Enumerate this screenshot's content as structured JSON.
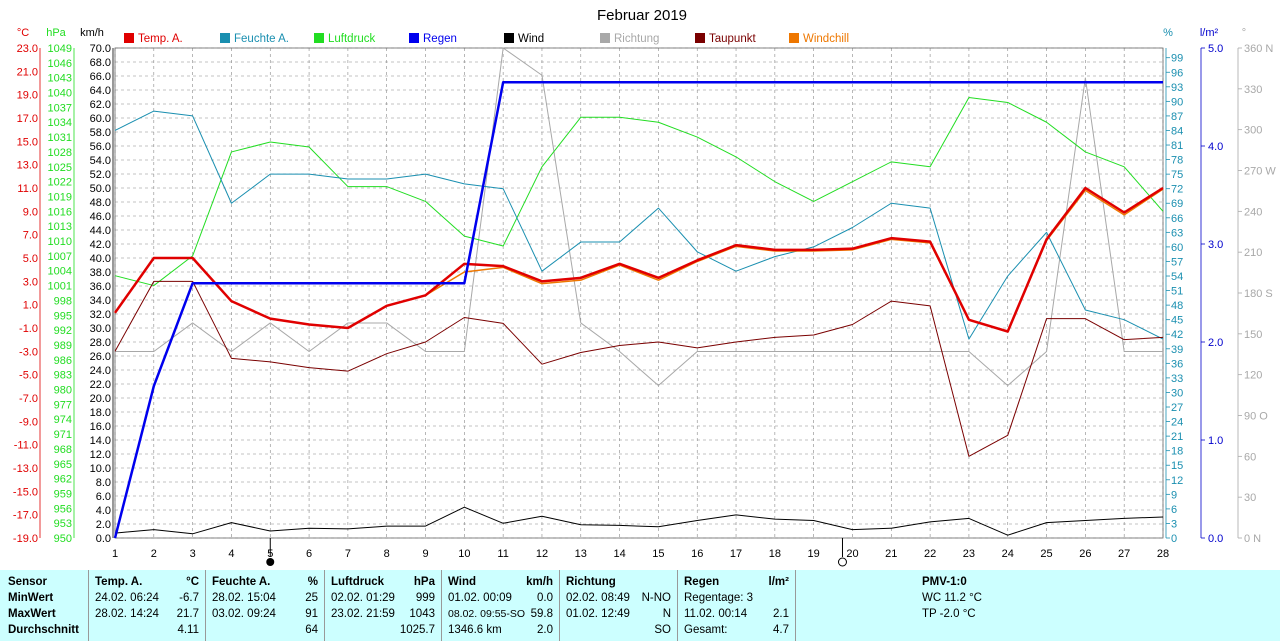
{
  "chart_data": {
    "type": "line",
    "title": "Februar 2019",
    "x": [
      1,
      2,
      3,
      4,
      5,
      6,
      7,
      8,
      9,
      10,
      11,
      12,
      13,
      14,
      15,
      16,
      17,
      18,
      19,
      20,
      21,
      22,
      23,
      24,
      25,
      26,
      27,
      28
    ],
    "legend": [
      {
        "name": "Temp. A.",
        "color": "#e00000"
      },
      {
        "name": "Feuchte A.",
        "color": "#1a8fb0"
      },
      {
        "name": "Luftdruck",
        "color": "#22dd22"
      },
      {
        "name": "Regen",
        "color": "#0000ee"
      },
      {
        "name": "Wind",
        "color": "#000000"
      },
      {
        "name": "Richtung",
        "color": "#a8a8a8"
      },
      {
        "name": "Taupunkt",
        "color": "#7a0000"
      },
      {
        "name": "Windchill",
        "color": "#ee7700"
      }
    ],
    "axes": {
      "temp": {
        "unit": "°C",
        "min": -19,
        "max": 23,
        "ticks": [
          "23.0",
          "21.0",
          "19.0",
          "17.0",
          "15.0",
          "13.0",
          "11.0",
          "9.0",
          "7.0",
          "5.0",
          "3.0",
          "1.0",
          "-1.0",
          "-3.0",
          "-5.0",
          "-7.0",
          "-9.0",
          "-11.0",
          "-13.0",
          "-15.0",
          "-17.0",
          "-19.0"
        ]
      },
      "pressure": {
        "unit": "hPa",
        "min": 950,
        "max": 1049,
        "ticks": [
          "1049",
          "1046",
          "1043",
          "1040",
          "1037",
          "1034",
          "1031",
          "1028",
          "1025",
          "1022",
          "1019",
          "1016",
          "1013",
          "1010",
          "1007",
          "1004",
          "1001",
          "998",
          "995",
          "992",
          "989",
          "986",
          "983",
          "980",
          "977",
          "974",
          "971",
          "968",
          "965",
          "962",
          "959",
          "956",
          "953",
          "950"
        ]
      },
      "wind": {
        "unit": "km/h",
        "min": 0,
        "max": 70,
        "ticks": [
          "70.0",
          "68.0",
          "66.0",
          "64.0",
          "62.0",
          "60.0",
          "58.0",
          "56.0",
          "54.0",
          "52.0",
          "50.0",
          "48.0",
          "46.0",
          "44.0",
          "42.0",
          "40.0",
          "38.0",
          "36.0",
          "34.0",
          "32.0",
          "30.0",
          "28.0",
          "26.0",
          "24.0",
          "22.0",
          "20.0",
          "18.0",
          "16.0",
          "14.0",
          "12.0",
          "10.0",
          "8.0",
          "6.0",
          "4.0",
          "2.0",
          "0.0"
        ]
      },
      "humidity": {
        "unit": "%",
        "min": 0,
        "max": 101,
        "ticks": [
          "99",
          "96",
          "93",
          "90",
          "87",
          "84",
          "81",
          "78",
          "75",
          "72",
          "69",
          "66",
          "63",
          "60",
          "57",
          "54",
          "51",
          "48",
          "45",
          "42",
          "39",
          "36",
          "33",
          "30",
          "27",
          "24",
          "21",
          "18",
          "15",
          "12",
          "9",
          "6",
          "3",
          "0"
        ]
      },
      "rain": {
        "unit": "l/m²",
        "min": 0,
        "max": 5,
        "ticks": [
          "5.0",
          "4.0",
          "3.0",
          "2.0",
          "1.0",
          "0.0"
        ]
      },
      "direction": {
        "unit": "°",
        "min": 0,
        "max": 360,
        "ticks": [
          "360 N",
          "330",
          "300",
          "270 W",
          "240",
          "210",
          "180 S",
          "150",
          "120",
          "90 O",
          "60",
          "30",
          "0 N"
        ]
      }
    },
    "series": [
      {
        "name": "Temp. A.",
        "axis": "temp",
        "color": "#e00000",
        "width": 2.5,
        "values": [
          0.3,
          5.0,
          5.0,
          1.3,
          -0.2,
          -0.7,
          -1.0,
          0.9,
          1.8,
          4.5,
          4.3,
          3.0,
          3.3,
          4.5,
          3.3,
          4.8,
          6.1,
          5.7,
          5.7,
          5.8,
          6.7,
          6.4,
          -0.3,
          -1.3,
          6.6,
          11.0,
          8.9,
          11.0
        ]
      },
      {
        "name": "Windchill",
        "axis": "temp",
        "color": "#ee7700",
        "width": 1.5,
        "values": [
          0.3,
          5.0,
          5.0,
          1.3,
          -0.2,
          -0.7,
          -1.0,
          0.9,
          1.8,
          3.8,
          4.2,
          2.8,
          3.1,
          4.4,
          3.1,
          4.7,
          6.0,
          5.6,
          5.6,
          5.7,
          6.6,
          6.3,
          -0.3,
          -1.3,
          6.5,
          10.8,
          8.7,
          10.9
        ]
      },
      {
        "name": "Taupunkt",
        "axis": "temp",
        "color": "#7a0000",
        "width": 1,
        "values": [
          -3.0,
          3.0,
          3.0,
          -3.6,
          -3.9,
          -4.4,
          -4.7,
          -3.2,
          -2.2,
          -0.1,
          -0.6,
          -4.1,
          -3.1,
          -2.5,
          -2.2,
          -2.7,
          -2.2,
          -1.8,
          -1.6,
          -0.7,
          1.3,
          0.9,
          -12.0,
          -10.2,
          -0.2,
          -0.2,
          -2.0,
          -1.8
        ]
      },
      {
        "name": "Feuchte A.",
        "axis": "humidity",
        "color": "#1a8fb0",
        "width": 1,
        "values": [
          84,
          88,
          87,
          69,
          75,
          75,
          74,
          74,
          75,
          73,
          72,
          55,
          61,
          61,
          68,
          59,
          55,
          58,
          60,
          64,
          69,
          68,
          41,
          54,
          63,
          47,
          45,
          41
        ]
      },
      {
        "name": "Luftdruck",
        "axis": "pressure",
        "color": "#22dd22",
        "width": 1,
        "values": [
          1003,
          1001,
          1007,
          1028,
          1030,
          1029,
          1021,
          1021,
          1018,
          1011,
          1009,
          1025,
          1035,
          1035,
          1034,
          1031,
          1027,
          1022,
          1018,
          1022,
          1026,
          1025,
          1039,
          1038,
          1034,
          1028,
          1025,
          1016
        ]
      },
      {
        "name": "Regen",
        "axis": "rain",
        "color": "#0000ee",
        "width": 2.5,
        "values": [
          0.0,
          1.55,
          2.6,
          2.6,
          2.6,
          2.6,
          2.6,
          2.6,
          2.6,
          2.6,
          4.65,
          4.65,
          4.65,
          4.65,
          4.65,
          4.65,
          4.65,
          4.65,
          4.65,
          4.65,
          4.65,
          4.65,
          4.65,
          4.65,
          4.65,
          4.65,
          4.65,
          4.65
        ]
      },
      {
        "name": "Wind",
        "axis": "wind",
        "color": "#000000",
        "width": 1,
        "values": [
          0.7,
          1.2,
          0.6,
          2.2,
          1.0,
          1.4,
          1.3,
          1.7,
          1.7,
          4.4,
          2.1,
          3.1,
          1.9,
          1.8,
          1.6,
          2.5,
          3.3,
          2.7,
          2.5,
          1.2,
          1.4,
          2.3,
          2.8,
          0.4,
          2.2,
          2.5,
          2.8,
          3.0
        ]
      },
      {
        "name": "Richtung",
        "axis": "direction",
        "color": "#a8a8a8",
        "width": 1,
        "values": [
          137,
          137,
          158,
          137,
          158,
          137,
          158,
          158,
          137,
          137,
          360,
          340,
          158,
          137,
          112,
          137,
          137,
          137,
          137,
          137,
          137,
          137,
          137,
          112,
          137,
          338,
          137,
          137
        ]
      }
    ],
    "markers": {
      "full_moon_day": "5",
      "new_moon_day": "20"
    },
    "grid": true
  },
  "stats": {
    "rows": [
      "Sensor",
      "MinWert",
      "MaxWert",
      "Durchschnitt"
    ],
    "temp": {
      "header": "Temp. A.",
      "unit": "°C",
      "min_date": "24.02.  06:24",
      "min_val": "-6.7",
      "max_date": "28.02.  14:24",
      "max_val": "21.7",
      "avg": "4.11"
    },
    "humidity": {
      "header": "Feuchte A.",
      "unit": "%",
      "min_date": "28.02.  15:04",
      "min_val": "25",
      "max_date": "03.02.  09:24",
      "max_val": "91",
      "avg": "64"
    },
    "pressure": {
      "header": "Luftdruck",
      "unit": "hPa",
      "min_date": "02.02.  01:29",
      "min_val": "999",
      "max_date": "23.02.  21:59",
      "max_val": "1043",
      "avg": "1025.7"
    },
    "wind": {
      "header": "Wind",
      "unit": "km/h",
      "min_date": "01.02.  00:09",
      "min_val": "0.0",
      "max_date": "08.02.  09:55-SO",
      "max_val": "59.8",
      "avg_date": "1346.6 km",
      "avg": "2.0"
    },
    "direction": {
      "header": "Richtung",
      "min_date": "02.02.  08:49",
      "min_val": "N-NO",
      "max_date": "01.02.  12:49",
      "max_val": "N",
      "avg": "SO"
    },
    "rain": {
      "header": "Regen",
      "unit": "l/m²",
      "min_text": "Regentage: 3",
      "max_date": "11.02.  00:14",
      "max_val": "2.1",
      "avg_text": "Gesamt:",
      "avg": "4.7"
    },
    "pmv": {
      "header": "PMV-1:0",
      "line1": "WC 11.2 °C",
      "line2": "TP -2.0 °C"
    }
  }
}
